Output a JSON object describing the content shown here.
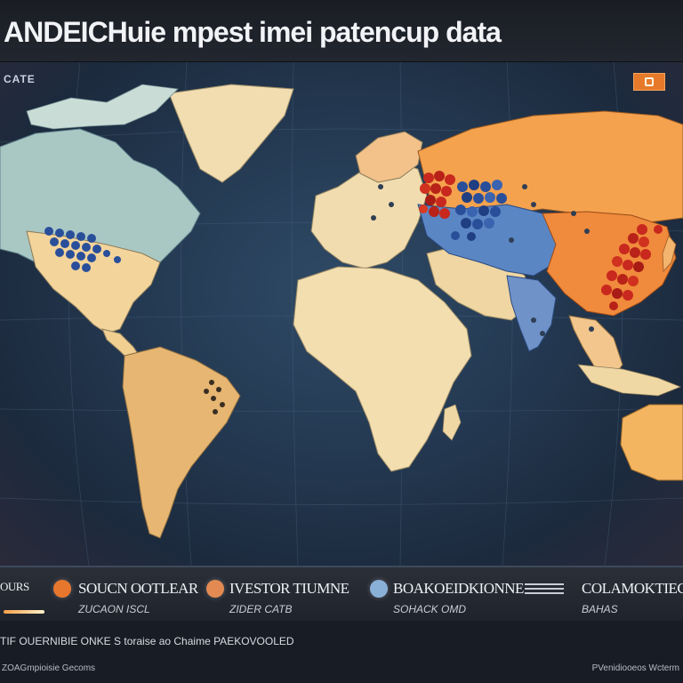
{
  "header": {
    "title": "ANDEICHuie mpest  imei patencup data"
  },
  "map": {
    "corner_label": "CATE",
    "badge_icon": "map-layer-icon",
    "colors": {
      "ocean": "#233850",
      "land_light": "#f1ddb0",
      "land_america_north": "#a9c8c4",
      "land_russia": "#f4a24e",
      "land_china": "#f08a3c",
      "hotspot_red": "#c8281e",
      "hotspot_blue": "#2a4f9a"
    }
  },
  "legend": {
    "items": [
      {
        "icon": "orange-circle-icon",
        "label": "SOUCN OOTLEAR",
        "sub": "ZUCAON ISCL",
        "color": "#e8772e"
      },
      {
        "icon": "orange-circle-icon",
        "label": "IVESTOR TIUMNE",
        "sub": "ZIDER  CATB",
        "color": "#e38a52"
      },
      {
        "icon": "blue-circle-icon",
        "label": "BOAKOEIDKIONNE",
        "sub": "SOHACK OMD",
        "color": "#8ab0d8"
      },
      {
        "icon": "stripes-icon",
        "label": "COLAMOKTIECT",
        "sub": "BAHAS",
        "color": "#c7ced8"
      }
    ],
    "left_edge_label": "OURS"
  },
  "footer": {
    "line1": "TIF OUERNIBIE ONKE S toraise ao  Chaime  PAEKOVOOLED",
    "line2": "ZOAGmpioisie Gecoms",
    "right": "PVenidiooeos Wcterm"
  }
}
